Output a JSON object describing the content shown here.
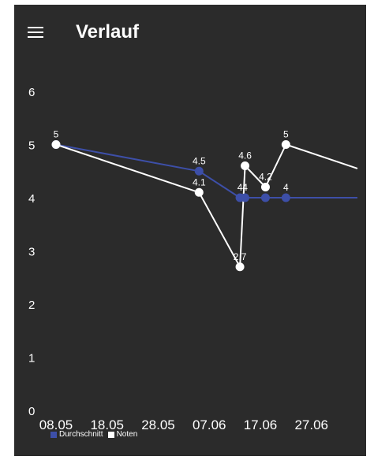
{
  "appbar": {
    "title": "Verlauf",
    "menu_icon": "hamburger-menu-icon"
  },
  "colors": {
    "background": "#2b2b2b",
    "series_durchschnitt": "#3d4fa8",
    "series_noten": "#ffffff",
    "text": "#ffffff"
  },
  "chart_data": {
    "type": "line",
    "ylim": [
      0,
      6
    ],
    "yticks": [
      0,
      1,
      2,
      3,
      4,
      5,
      6
    ],
    "xlim": [
      "2021-05-08",
      "2021-07-06"
    ],
    "xticks": [
      {
        "date": "2021-05-08",
        "label": "08.05"
      },
      {
        "date": "2021-05-18",
        "label": "18.05"
      },
      {
        "date": "2021-05-28",
        "label": "28.05"
      },
      {
        "date": "2021-06-07",
        "label": "07.06"
      },
      {
        "date": "2021-06-17",
        "label": "17.06"
      },
      {
        "date": "2021-06-27",
        "label": "27.06"
      }
    ],
    "grid": false,
    "legend_position": "bottom-left",
    "series": [
      {
        "name": "Durchschnitt",
        "color": "#3d4fa8",
        "points": [
          {
            "x": "2021-05-08",
            "y": 5,
            "label": ""
          },
          {
            "x": "2021-06-05",
            "y": 4.5,
            "label": "4.5"
          },
          {
            "x": "2021-06-13",
            "y": 4,
            "label": "4"
          },
          {
            "x": "2021-06-14",
            "y": 4,
            "label": "4"
          },
          {
            "x": "2021-06-18",
            "y": 4,
            "label": ""
          },
          {
            "x": "2021-06-22",
            "y": 4,
            "label": "4"
          },
          {
            "x": "2021-07-06",
            "y": 4,
            "label": ""
          }
        ]
      },
      {
        "name": "Noten",
        "color": "#ffffff",
        "points": [
          {
            "x": "2021-05-08",
            "y": 5,
            "label": "5"
          },
          {
            "x": "2021-06-05",
            "y": 4.1,
            "label": "4.1"
          },
          {
            "x": "2021-06-13",
            "y": 2.7,
            "label": "2.7"
          },
          {
            "x": "2021-06-14",
            "y": 4.6,
            "label": "4.6"
          },
          {
            "x": "2021-06-18",
            "y": 4.2,
            "label": "4.2"
          },
          {
            "x": "2021-06-22",
            "y": 5,
            "label": "5"
          },
          {
            "x": "2021-07-06",
            "y": 4.55,
            "label": ""
          }
        ]
      }
    ]
  }
}
